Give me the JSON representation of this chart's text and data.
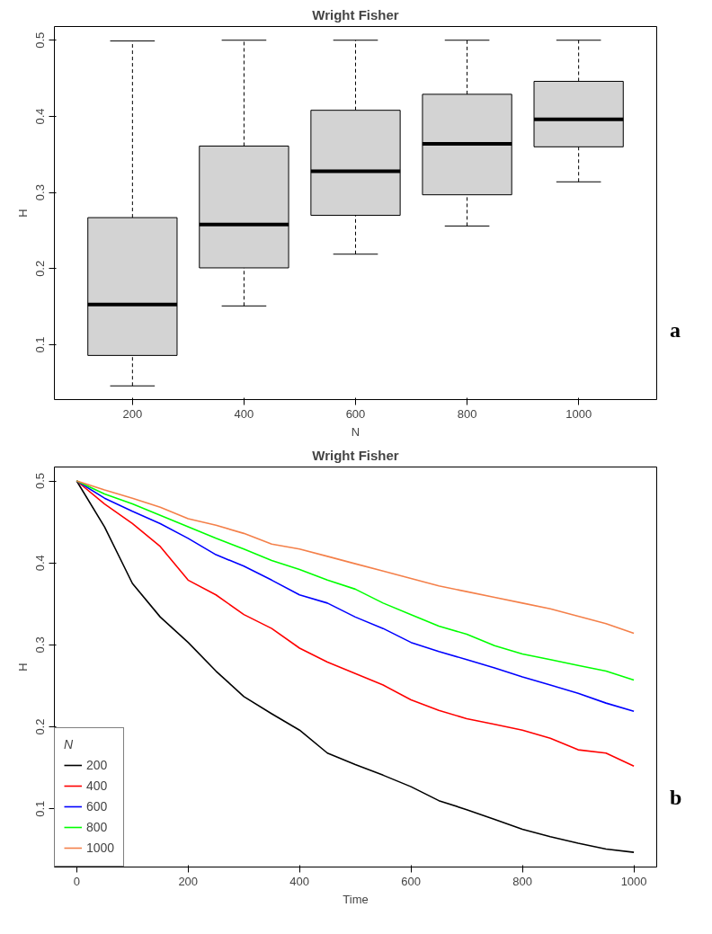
{
  "chart_data": [
    {
      "type": "box",
      "title": "Wright Fisher",
      "xlabel": "N",
      "ylabel": "H",
      "categories": [
        "200",
        "400",
        "600",
        "800",
        "1000"
      ],
      "ylim": [
        0.028,
        0.518
      ],
      "yticks": [
        0.1,
        0.2,
        0.3,
        0.4,
        0.5
      ],
      "grid": false,
      "annotations": [
        "a"
      ],
      "series": [
        {
          "color": "#d3d3d3",
          "boxes": [
            {
              "low": 0.046,
              "q1": 0.086,
              "median": 0.153,
              "q3": 0.267,
              "high": 0.499
            },
            {
              "low": 0.151,
              "q1": 0.201,
              "median": 0.258,
              "q3": 0.361,
              "high": 0.5
            },
            {
              "low": 0.219,
              "q1": 0.27,
              "median": 0.328,
              "q3": 0.408,
              "high": 0.5
            },
            {
              "low": 0.256,
              "q1": 0.297,
              "median": 0.364,
              "q3": 0.429,
              "high": 0.5
            },
            {
              "low": 0.314,
              "q1": 0.36,
              "median": 0.396,
              "q3": 0.446,
              "high": 0.5
            }
          ]
        }
      ]
    },
    {
      "type": "line",
      "title": "Wright Fisher",
      "xlabel": "Time",
      "ylabel": "H",
      "legend_title": "N",
      "legend": "bottom left",
      "grid": false,
      "annotations": [
        "b"
      ],
      "x": [
        0,
        50,
        100,
        150,
        200,
        250,
        300,
        350,
        400,
        450,
        500,
        550,
        600,
        650,
        700,
        750,
        800,
        850,
        900,
        950,
        1000
      ],
      "xlim": [
        -40,
        1041
      ],
      "xticks": [
        0,
        200,
        400,
        600,
        800,
        1000
      ],
      "ylim": [
        0.029,
        0.517
      ],
      "yticks": [
        0.1,
        0.2,
        0.3,
        0.4,
        0.5
      ],
      "series": [
        {
          "name": "200",
          "color": "#000000",
          "values": [
            0.5,
            0.444,
            0.375,
            0.334,
            0.303,
            0.268,
            0.237,
            0.216,
            0.196,
            0.168,
            0.154,
            0.141,
            0.127,
            0.11,
            0.099,
            0.087,
            0.075,
            0.066,
            0.058,
            0.051,
            0.047
          ]
        },
        {
          "name": "400",
          "color": "#ff0000",
          "values": [
            0.5,
            0.472,
            0.448,
            0.42,
            0.379,
            0.361,
            0.337,
            0.32,
            0.296,
            0.279,
            0.265,
            0.251,
            0.233,
            0.22,
            0.21,
            0.203,
            0.196,
            0.186,
            0.172,
            0.168,
            0.152
          ]
        },
        {
          "name": "600",
          "color": "#0000ff",
          "values": [
            0.5,
            0.479,
            0.463,
            0.448,
            0.43,
            0.41,
            0.396,
            0.379,
            0.361,
            0.351,
            0.334,
            0.32,
            0.303,
            0.292,
            0.282,
            0.272,
            0.261,
            0.251,
            0.241,
            0.229,
            0.219
          ]
        },
        {
          "name": "800",
          "color": "#00ff00",
          "values": [
            0.5,
            0.484,
            0.472,
            0.458,
            0.444,
            0.43,
            0.417,
            0.403,
            0.392,
            0.379,
            0.368,
            0.351,
            0.337,
            0.323,
            0.313,
            0.299,
            0.289,
            0.282,
            0.275,
            0.268,
            0.257
          ]
        },
        {
          "name": "1000",
          "color": "#f4804a",
          "values": [
            0.5,
            0.489,
            0.479,
            0.468,
            0.454,
            0.446,
            0.436,
            0.423,
            0.417,
            0.408,
            0.399,
            0.39,
            0.381,
            0.372,
            0.365,
            0.358,
            0.351,
            0.344,
            0.335,
            0.326,
            0.314
          ]
        }
      ]
    }
  ]
}
